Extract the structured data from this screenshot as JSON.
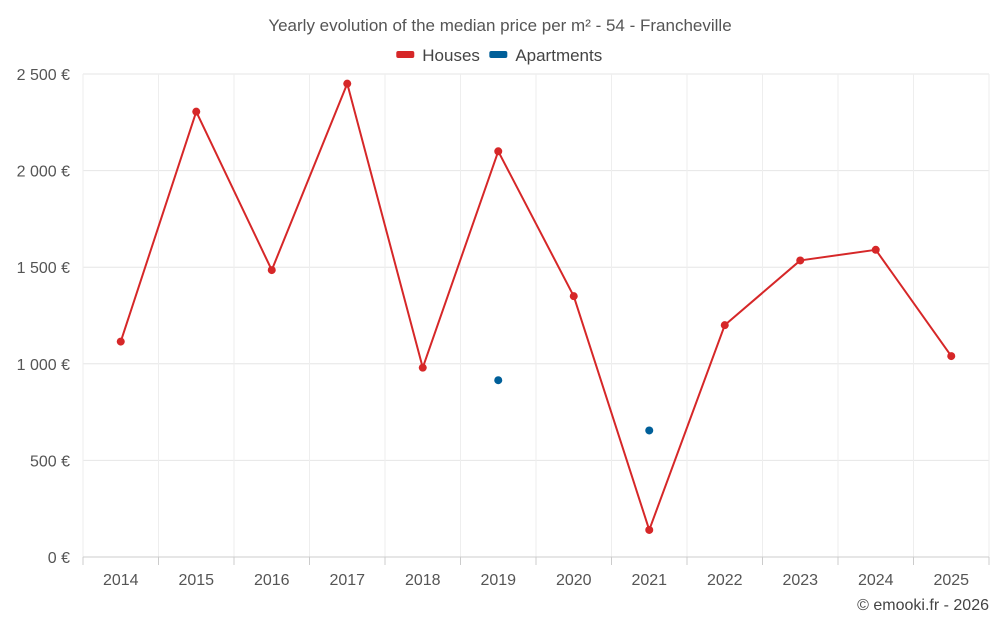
{
  "chart_data": {
    "type": "line",
    "title": "Yearly evolution of the median price per m² - 54 - Francheville",
    "categories": [
      "2014",
      "2015",
      "2016",
      "2017",
      "2018",
      "2019",
      "2020",
      "2021",
      "2022",
      "2023",
      "2024",
      "2025"
    ],
    "series": [
      {
        "name": "Houses",
        "color": "#d62728",
        "values": [
          1115,
          2305,
          1485,
          2450,
          980,
          2100,
          1350,
          140,
          1200,
          1535,
          1590,
          1040
        ]
      },
      {
        "name": "Apartments",
        "color": "#005f99",
        "values": [
          null,
          null,
          null,
          null,
          null,
          915,
          null,
          655,
          null,
          null,
          null,
          null
        ]
      }
    ],
    "y_ticks": [
      {
        "value": 0,
        "label": "0 €"
      },
      {
        "value": 500,
        "label": "500 €"
      },
      {
        "value": 1000,
        "label": "1 000 €"
      },
      {
        "value": 1500,
        "label": "1 500 €"
      },
      {
        "value": 2000,
        "label": "2 000 €"
      },
      {
        "value": 2500,
        "label": "2 500 €"
      }
    ],
    "ylim": [
      0,
      2500
    ],
    "xlabel": "",
    "ylabel": "",
    "grid": true,
    "legend_position": "top-center"
  },
  "credit": "© emooki.fr - 2026"
}
